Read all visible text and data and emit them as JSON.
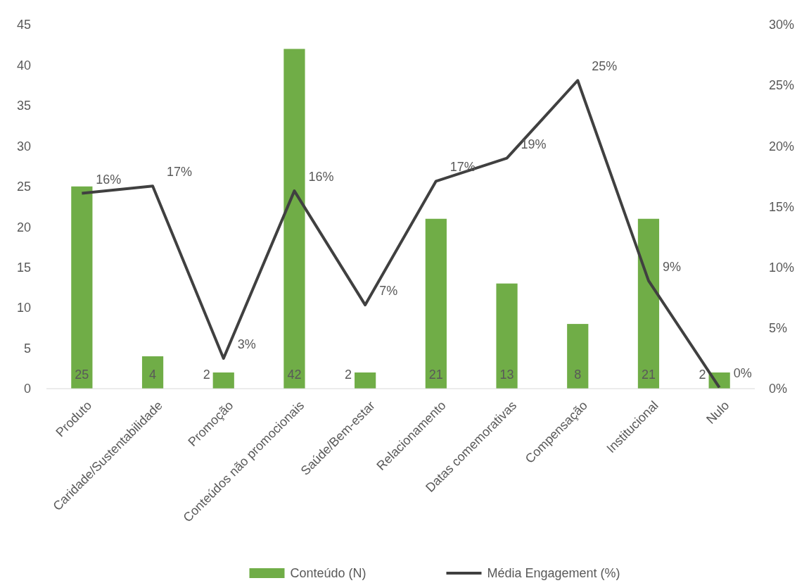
{
  "chart_data": {
    "type": "bar",
    "categories": [
      "Produto",
      "Caridade/Sustentabilidade",
      "Promoção",
      "Conteúdos não promocionais",
      "Saúde/Bem-estar",
      "Relacionamento",
      "Datas comemorativas",
      "Compensação",
      "Institucional",
      "Nulo"
    ],
    "series": [
      {
        "name": "Conteúdo (N)",
        "color": "#70ad47",
        "values": [
          25,
          4,
          2,
          42,
          2,
          21,
          13,
          8,
          21,
          2
        ],
        "value_labels": [
          "25",
          "4",
          "2",
          "42",
          "2",
          "21",
          "13",
          "8",
          "21",
          "2"
        ]
      },
      {
        "name": "Média Engagement (%)",
        "type": "line",
        "axis": "y2",
        "color": "#404040",
        "values": [
          16.1,
          16.7,
          2.5,
          16.3,
          6.9,
          17.1,
          19.0,
          25.4,
          8.9,
          0.1
        ],
        "value_labels": [
          "16%",
          "17%",
          "3%",
          "16%",
          "7%",
          "17%",
          "19%",
          "25%",
          "9%",
          "0%"
        ]
      }
    ],
    "ylim": [
      0,
      45
    ],
    "yticks": [
      0,
      5,
      10,
      15,
      20,
      25,
      30,
      35,
      40,
      45
    ],
    "y2lim": [
      0,
      30
    ],
    "y2ticks": [
      {
        "value": 0,
        "label": "0%"
      },
      {
        "value": 5,
        "label": "5%"
      },
      {
        "value": 10,
        "label": "10%"
      },
      {
        "value": 15,
        "label": "15%"
      },
      {
        "value": 20,
        "label": "20%"
      },
      {
        "value": 25,
        "label": "25%"
      },
      {
        "value": 30,
        "label": "30%"
      }
    ],
    "grid": false,
    "legend": "bottom",
    "marker": "none",
    "line_style": "solid"
  }
}
